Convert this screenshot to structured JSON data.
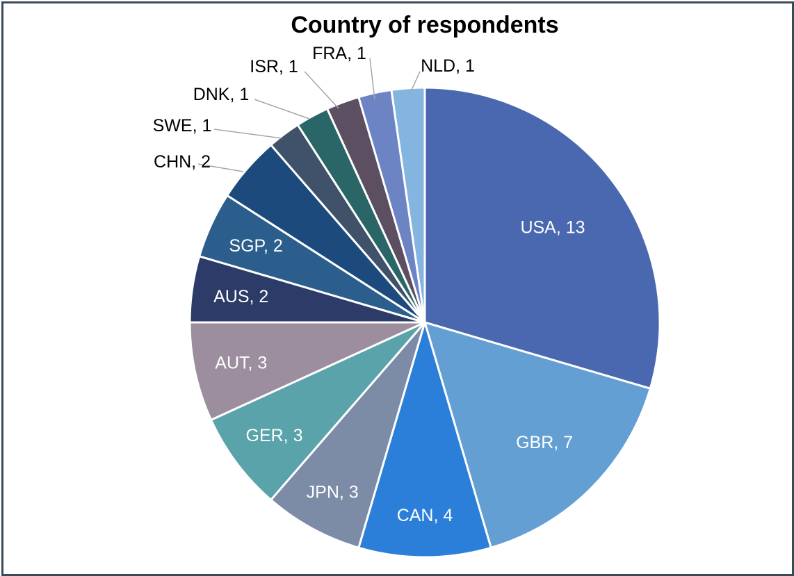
{
  "chart_data": {
    "type": "pie",
    "title": "Country of respondents",
    "slices": [
      {
        "label": "USA, 13",
        "category": "USA",
        "value": 13,
        "color": "#4a68b0"
      },
      {
        "label": "GBR, 7",
        "category": "GBR",
        "value": 7,
        "color": "#649fd4"
      },
      {
        "label": "CAN, 4",
        "category": "CAN",
        "value": 4,
        "color": "#2b7fd8"
      },
      {
        "label": "JPN, 3",
        "category": "JPN",
        "value": 3,
        "color": "#7c8ba6"
      },
      {
        "label": "GER, 3",
        "category": "GER",
        "value": 3,
        "color": "#5aa3aa"
      },
      {
        "label": "AUT, 3",
        "category": "AUT",
        "value": 3,
        "color": "#9c8e9e"
      },
      {
        "label": "AUS, 2",
        "category": "AUS",
        "value": 2,
        "color": "#2c3b67"
      },
      {
        "label": "SGP, 2",
        "category": "SGP",
        "value": 2,
        "color": "#2b5e8c"
      },
      {
        "label": "CHN, 2",
        "category": "CHN",
        "value": 2,
        "color": "#1c4a7c"
      },
      {
        "label": "SWE, 1",
        "category": "SWE",
        "value": 1,
        "color": "#3f5269"
      },
      {
        "label": "DNK, 1",
        "category": "DNK",
        "value": 1,
        "color": "#2a6667"
      },
      {
        "label": "ISR, 1",
        "category": "ISR",
        "value": 1,
        "color": "#5b4f61"
      },
      {
        "label": "FRA, 1",
        "category": "FRA",
        "value": 1,
        "color": "#6c84c3"
      },
      {
        "label": "NLD, 1",
        "category": "NLD",
        "value": 1,
        "color": "#84b4e0"
      }
    ],
    "legend": "none",
    "label_color_inside": "#ffffff",
    "label_color_outside": "#000000",
    "leader_line_color": "#a6a6a6"
  }
}
